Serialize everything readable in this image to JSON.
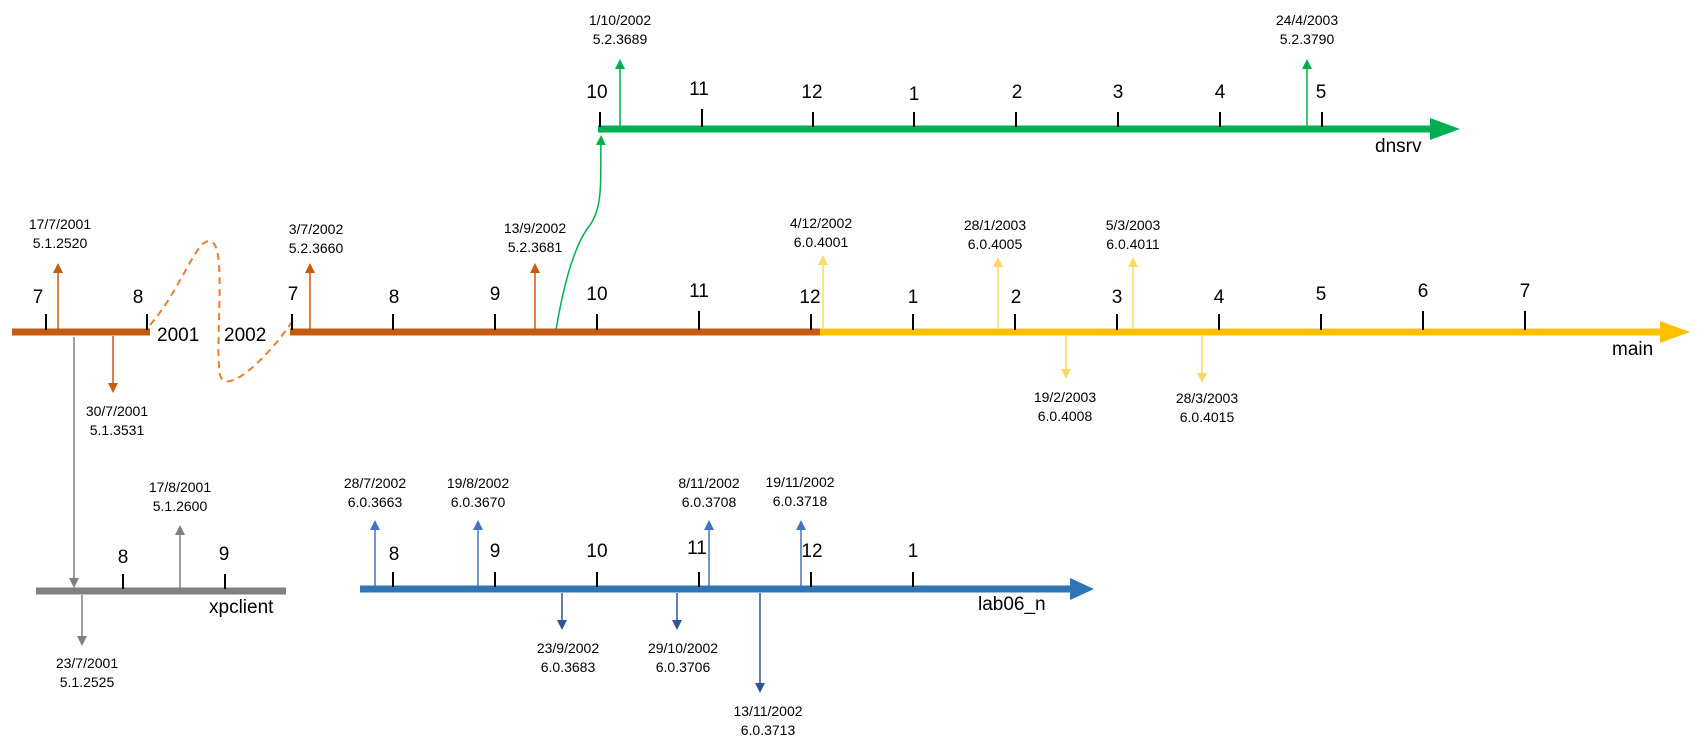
{
  "colors": {
    "orange": "#c55a11",
    "yellow": "#ffc000",
    "yellow_light": "#ffd966",
    "green": "#00b050",
    "gray": "#808080",
    "blue": "#2e75b6",
    "blue_light": "#4472c4",
    "blue_dark": "#2f5597"
  },
  "branches": {
    "dnsrv": {
      "name": "dnsrv",
      "months": [
        "10",
        "11",
        "12",
        "1",
        "2",
        "3",
        "4",
        "5"
      ],
      "releases": [
        {
          "date": "1/10/2002",
          "version": "5.2.3689"
        },
        {
          "date": "24/4/2003",
          "version": "5.2.3790"
        }
      ]
    },
    "main": {
      "name": "main",
      "year_left": "2001",
      "year_right": "2002",
      "months_2001": [
        "7",
        "8"
      ],
      "months_2002": [
        "7",
        "8",
        "9",
        "10",
        "11",
        "12",
        "1",
        "2",
        "3",
        "4",
        "5",
        "6",
        "7"
      ],
      "releases_up": [
        {
          "date": "17/7/2001",
          "version": "5.1.2520"
        },
        {
          "date": "3/7/2002",
          "version": "5.2.3660"
        },
        {
          "date": "13/9/2002",
          "version": "5.2.3681"
        },
        {
          "date": "4/12/2002",
          "version": "6.0.4001"
        },
        {
          "date": "28/1/2003",
          "version": "6.0.4005"
        },
        {
          "date": "5/3/2003",
          "version": "6.0.4011"
        }
      ],
      "releases_down": [
        {
          "date": "30/7/2001",
          "version": "5.1.3531"
        },
        {
          "date": "19/2/2003",
          "version": "6.0.4008"
        },
        {
          "date": "28/3/2003",
          "version": "6.0.4015"
        }
      ]
    },
    "xpclient": {
      "name": "xpclient",
      "months": [
        "8",
        "9"
      ],
      "releases": [
        {
          "date": "17/8/2001",
          "version": "5.1.2600"
        },
        {
          "date": "23/7/2001",
          "version": "5.1.2525"
        }
      ]
    },
    "lab06_n": {
      "name": "lab06_n",
      "months": [
        "8",
        "9",
        "10",
        "11",
        "12",
        "1"
      ],
      "releases_up": [
        {
          "date": "28/7/2002",
          "version": "6.0.3663"
        },
        {
          "date": "19/8/2002",
          "version": "6.0.3670"
        },
        {
          "date": "8/11/2002",
          "version": "6.0.3708"
        },
        {
          "date": "19/11/2002",
          "version": "6.0.3718"
        }
      ],
      "releases_down": [
        {
          "date": "23/9/2002",
          "version": "6.0.3683"
        },
        {
          "date": "29/10/2002",
          "version": "6.0.3706"
        },
        {
          "date": "13/11/2002",
          "version": "6.0.3713"
        }
      ]
    }
  }
}
